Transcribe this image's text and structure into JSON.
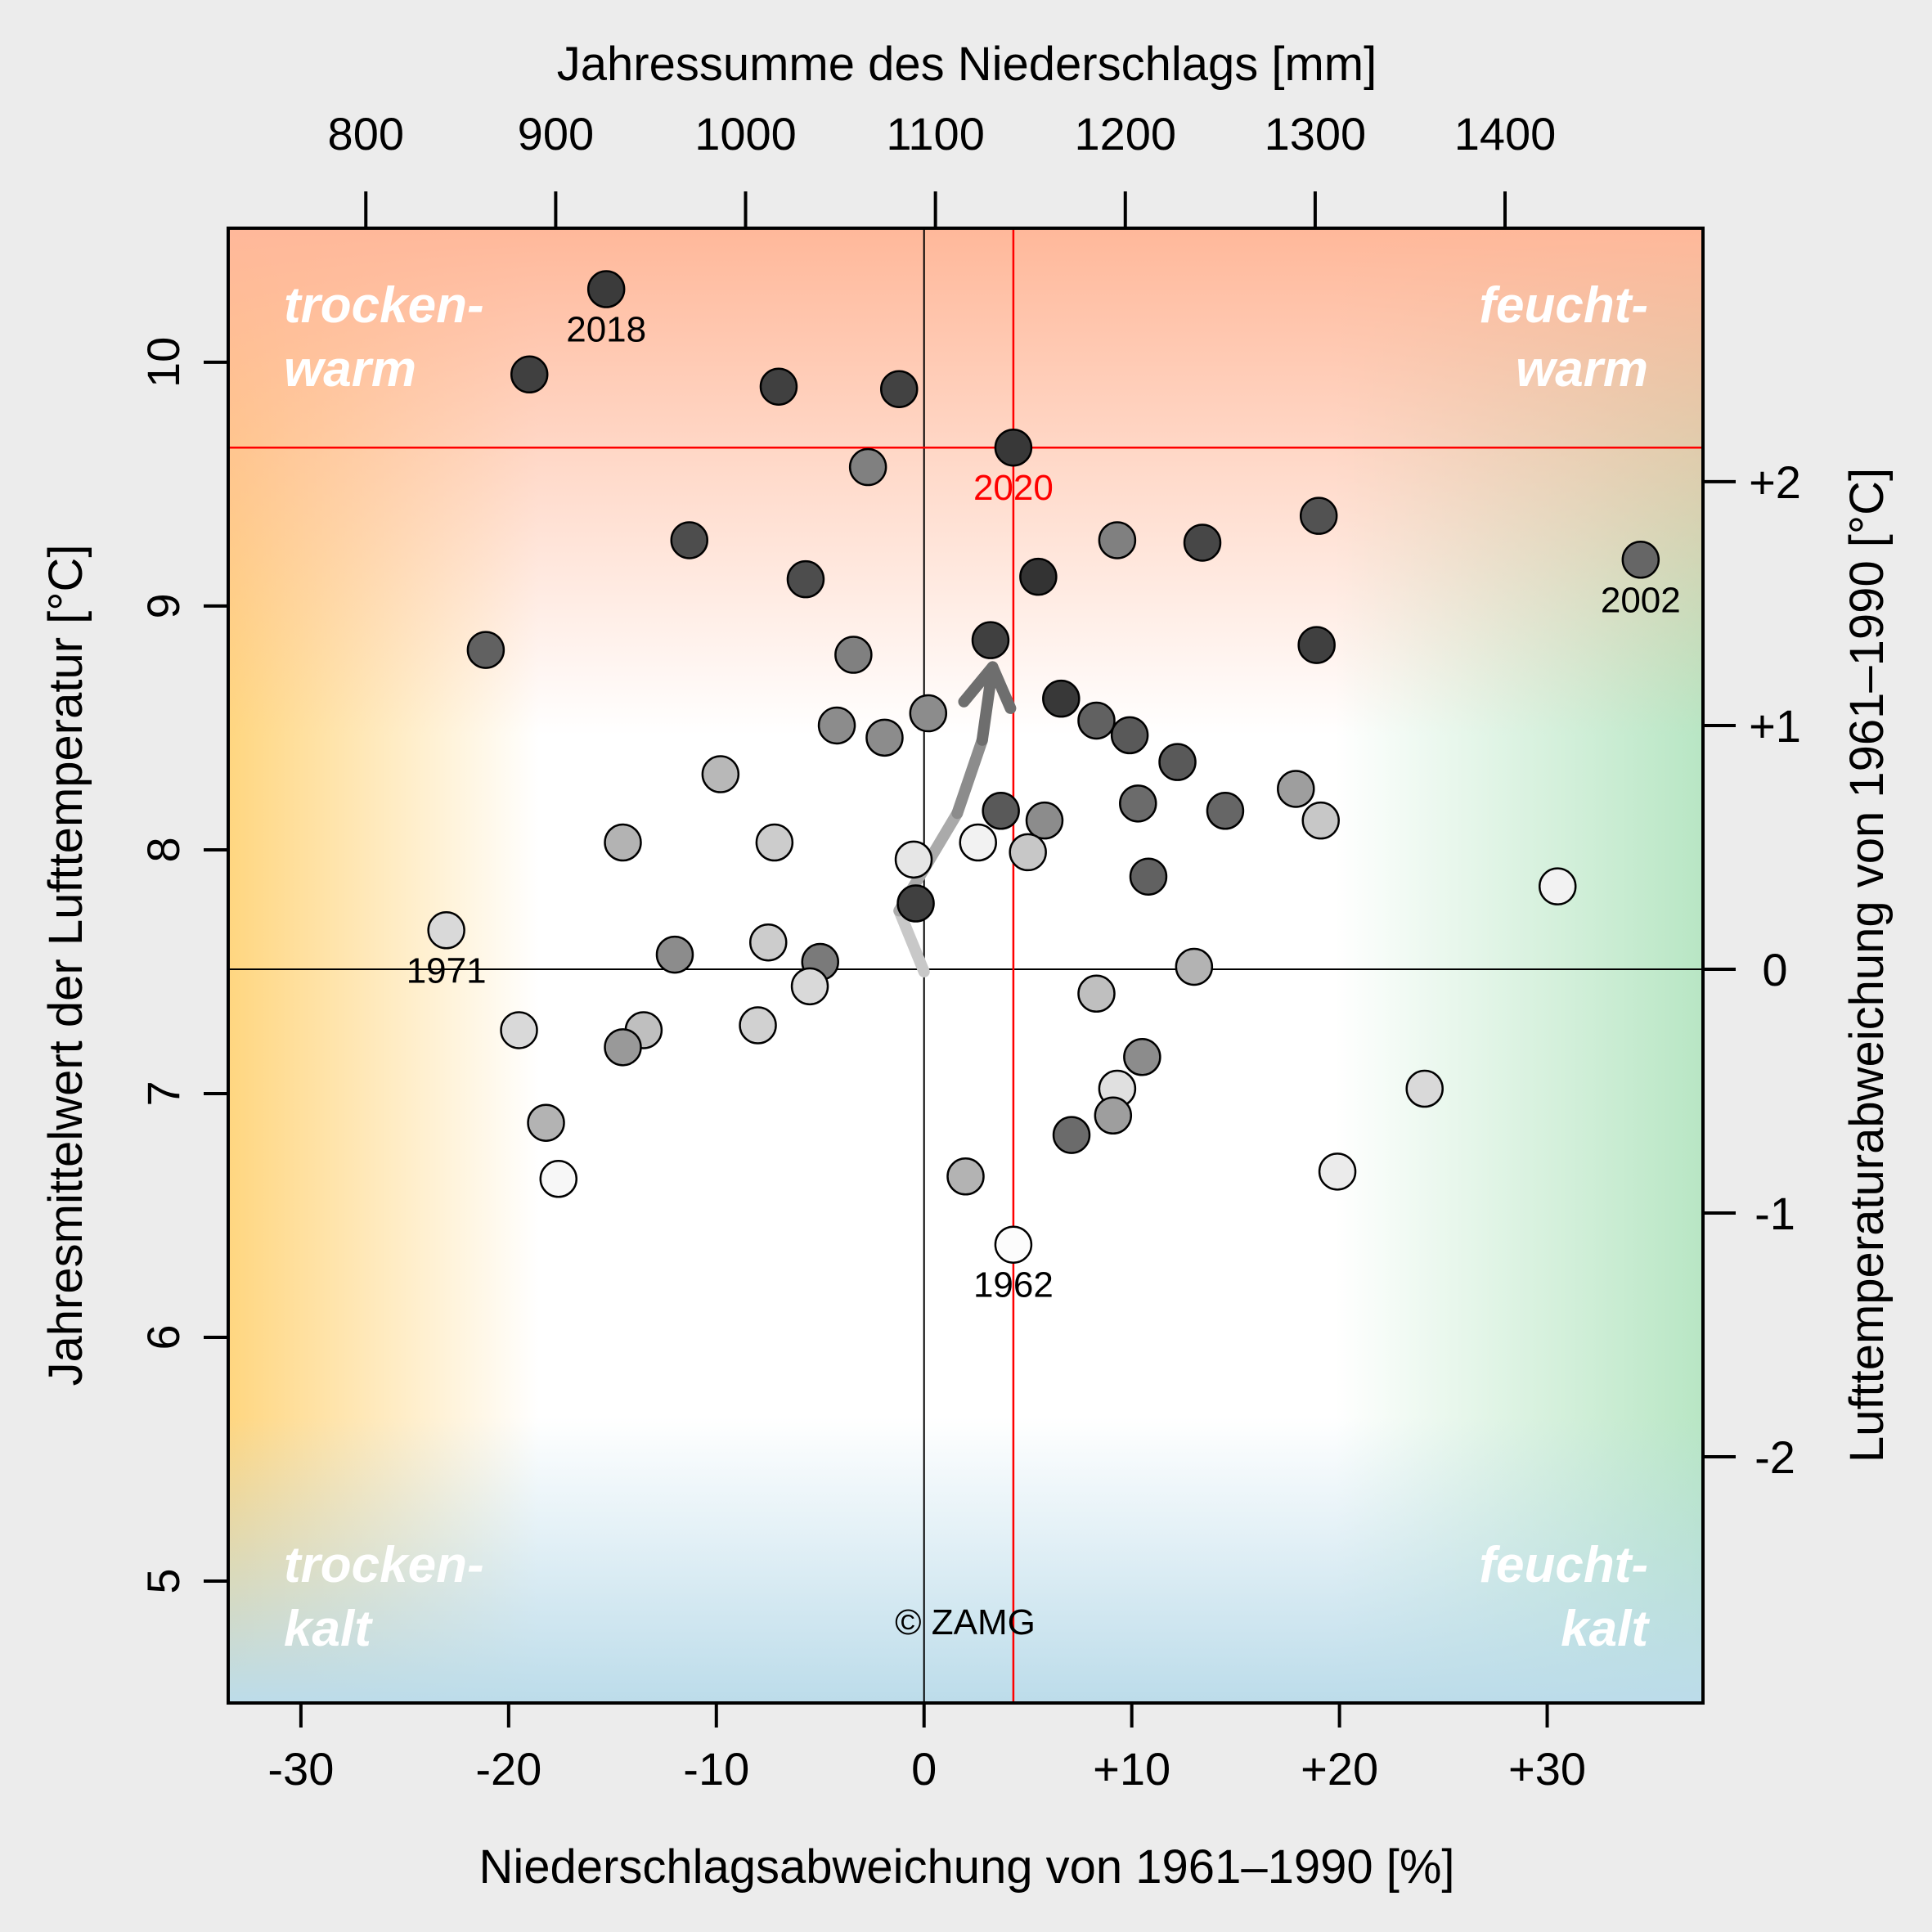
{
  "chart_data": {
    "type": "scatter",
    "title": "",
    "xlabel": "Niederschlagsabweichung von 1961–1990 [%]",
    "ylabel": "Jahresmittelwert der Lufttemperatur [°C]",
    "top_xlabel": "Jahressumme des Niederschlags [mm]",
    "right_ylabel": "Lufttemperaturabweichung von 1961–1990 [°C]",
    "xlim": [
      -33.5,
      37.5
    ],
    "ylim": [
      4.5,
      10.55
    ],
    "x_ticks": [
      -30,
      -20,
      -10,
      0,
      10,
      20,
      30
    ],
    "x_tick_labels": [
      "-30",
      "-20",
      "-10",
      "0",
      "+10",
      "+20",
      "+30"
    ],
    "y_ticks": [
      5,
      6,
      7,
      8,
      9,
      10
    ],
    "y_tick_labels": [
      "5",
      "6",
      "7",
      "8",
      "9",
      "10"
    ],
    "top_ticks_mm": [
      800,
      900,
      1000,
      1100,
      1200,
      1300,
      1400
    ],
    "top_tick_labels": [
      "800",
      "900",
      "1000",
      "1100",
      "1200",
      "1300",
      "1400"
    ],
    "reference_precip_mm": 1094,
    "right_ticks": [
      -2,
      -1,
      0,
      1,
      2
    ],
    "right_tick_labels": [
      "-2",
      "-1",
      "0",
      "+1",
      "+2"
    ],
    "reference_temp": 7.51,
    "quadrant_labels": {
      "top_left": [
        "trocken-",
        "warm"
      ],
      "top_right": [
        "feucht-",
        "warm"
      ],
      "bottom_left": [
        "trocken-",
        "kalt"
      ],
      "bottom_right": [
        "feucht-",
        "kalt"
      ]
    },
    "copyright": "© ZAMG",
    "highlight": {
      "year": "2020",
      "x": 4.3,
      "y": 9.65,
      "color": "#ff0000"
    },
    "trend_arrow": [
      [
        0.0,
        7.5
      ],
      [
        -1.2,
        7.75
      ],
      [
        1.6,
        8.15
      ],
      [
        2.8,
        8.45
      ],
      [
        3.3,
        8.75
      ]
    ],
    "series": [
      {
        "name": "Jahre",
        "points": [
          {
            "x": -15.3,
            "y": 10.3,
            "shade": 0.23,
            "label": "2018"
          },
          {
            "x": -19.0,
            "y": 9.95,
            "shade": 0.25
          },
          {
            "x": -7.0,
            "y": 9.9,
            "shade": 0.25
          },
          {
            "x": -1.2,
            "y": 9.89,
            "shade": 0.26
          },
          {
            "x": 4.3,
            "y": 9.65,
            "shade": 0.22,
            "label": "2020"
          },
          {
            "x": -2.7,
            "y": 9.57,
            "shade": 0.5
          },
          {
            "x": -11.3,
            "y": 9.27,
            "shade": 0.3
          },
          {
            "x": 9.3,
            "y": 9.27,
            "shade": 0.5
          },
          {
            "x": 13.4,
            "y": 9.26,
            "shade": 0.28
          },
          {
            "x": 19.0,
            "y": 9.37,
            "shade": 0.32
          },
          {
            "x": 34.5,
            "y": 9.19,
            "shade": 0.4,
            "label": "2002"
          },
          {
            "x": -5.7,
            "y": 9.11,
            "shade": 0.3
          },
          {
            "x": 5.5,
            "y": 9.12,
            "shade": 0.2
          },
          {
            "x": -21.1,
            "y": 8.82,
            "shade": 0.38
          },
          {
            "x": -3.4,
            "y": 8.8,
            "shade": 0.5
          },
          {
            "x": 3.2,
            "y": 8.86,
            "shade": 0.25
          },
          {
            "x": 18.9,
            "y": 8.84,
            "shade": 0.25
          },
          {
            "x": 6.6,
            "y": 8.62,
            "shade": 0.22
          },
          {
            "x": 8.3,
            "y": 8.53,
            "shade": 0.38
          },
          {
            "x": -4.2,
            "y": 8.51,
            "shade": 0.55
          },
          {
            "x": -1.9,
            "y": 8.46,
            "shade": 0.55
          },
          {
            "x": 0.2,
            "y": 8.56,
            "shade": 0.55
          },
          {
            "x": 9.9,
            "y": 8.47,
            "shade": 0.35
          },
          {
            "x": 12.2,
            "y": 8.36,
            "shade": 0.35
          },
          {
            "x": -9.8,
            "y": 8.31,
            "shade": 0.72
          },
          {
            "x": 10.3,
            "y": 8.19,
            "shade": 0.42
          },
          {
            "x": 3.7,
            "y": 8.16,
            "shade": 0.35
          },
          {
            "x": 5.8,
            "y": 8.12,
            "shade": 0.55
          },
          {
            "x": 14.5,
            "y": 8.16,
            "shade": 0.4
          },
          {
            "x": 17.9,
            "y": 8.25,
            "shade": 0.62
          },
          {
            "x": 19.1,
            "y": 8.12,
            "shade": 0.78
          },
          {
            "x": -14.5,
            "y": 8.03,
            "shade": 0.7
          },
          {
            "x": -7.2,
            "y": 8.03,
            "shade": 0.8
          },
          {
            "x": 2.6,
            "y": 8.03,
            "shade": 0.95
          },
          {
            "x": 5.0,
            "y": 7.99,
            "shade": 0.78
          },
          {
            "x": -0.5,
            "y": 7.96,
            "shade": 0.9
          },
          {
            "x": 10.8,
            "y": 7.89,
            "shade": 0.38
          },
          {
            "x": -0.4,
            "y": 7.78,
            "shade": 0.25
          },
          {
            "x": 30.5,
            "y": 7.85,
            "shade": 0.95
          },
          {
            "x": -23.0,
            "y": 7.67,
            "shade": 0.85,
            "label": "1971"
          },
          {
            "x": -7.5,
            "y": 7.62,
            "shade": 0.8
          },
          {
            "x": -12.0,
            "y": 7.57,
            "shade": 0.55
          },
          {
            "x": -5.0,
            "y": 7.54,
            "shade": 0.48
          },
          {
            "x": -5.5,
            "y": 7.44,
            "shade": 0.85
          },
          {
            "x": 13.0,
            "y": 7.52,
            "shade": 0.7
          },
          {
            "x": 8.3,
            "y": 7.41,
            "shade": 0.75
          },
          {
            "x": -19.5,
            "y": 7.26,
            "shade": 0.85
          },
          {
            "x": -13.5,
            "y": 7.26,
            "shade": 0.75
          },
          {
            "x": -8.0,
            "y": 7.28,
            "shade": 0.82
          },
          {
            "x": -14.5,
            "y": 7.19,
            "shade": 0.6
          },
          {
            "x": 10.5,
            "y": 7.15,
            "shade": 0.55
          },
          {
            "x": 9.3,
            "y": 7.02,
            "shade": 0.88
          },
          {
            "x": 24.1,
            "y": 7.02,
            "shade": 0.85
          },
          {
            "x": 9.1,
            "y": 6.91,
            "shade": 0.62
          },
          {
            "x": -18.2,
            "y": 6.88,
            "shade": 0.7
          },
          {
            "x": 7.1,
            "y": 6.83,
            "shade": 0.42
          },
          {
            "x": -17.6,
            "y": 6.65,
            "shade": 0.97
          },
          {
            "x": 2.0,
            "y": 6.66,
            "shade": 0.7
          },
          {
            "x": 19.9,
            "y": 6.68,
            "shade": 0.92
          },
          {
            "x": 4.3,
            "y": 6.38,
            "shade": 0.99,
            "label": "1962"
          }
        ]
      }
    ]
  }
}
